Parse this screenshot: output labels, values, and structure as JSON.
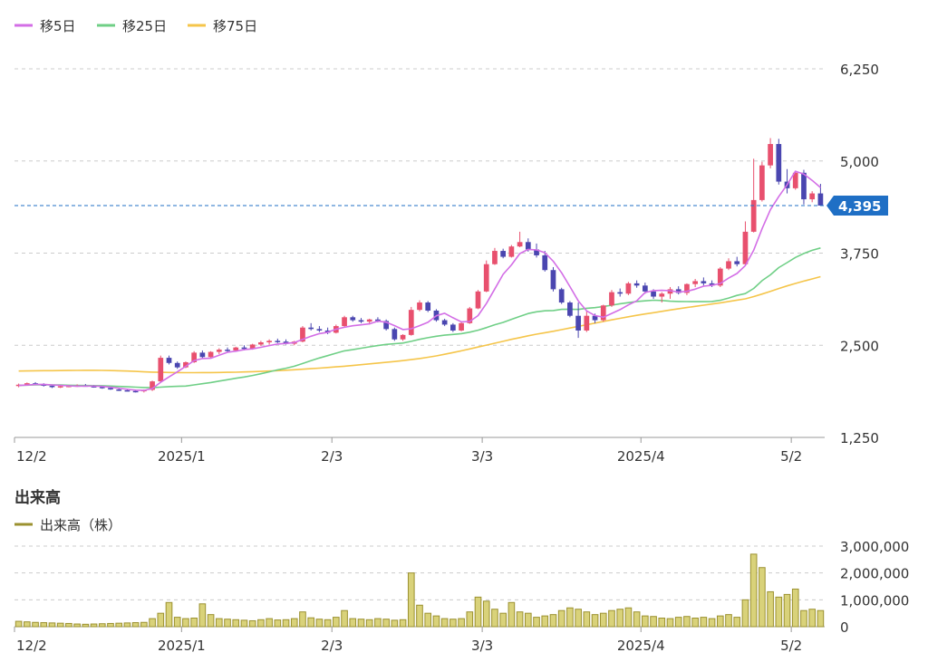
{
  "colors": {
    "up": "#e8506e",
    "down": "#4a46b0",
    "ma5": "#d36ee6",
    "ma25": "#6fcf86",
    "ma75": "#f5c54a",
    "volume_fill": "#d9d27a",
    "volume_stroke": "#9b9130",
    "last_price": "#1f6fc5",
    "grid": "#cccccc"
  },
  "chart_data": [
    {
      "type": "candlestick",
      "legend": [
        {
          "key": "ma5",
          "label": "移5日"
        },
        {
          "key": "ma25",
          "label": "移25日"
        },
        {
          "key": "ma75",
          "label": "移75日"
        }
      ],
      "legend_placement": "top-left",
      "ylim": [
        1250,
        6250
      ],
      "yticks": [
        1250,
        2500,
        3750,
        5000,
        6250
      ],
      "ytick_labels": [
        "1,250",
        "2,500",
        "3,750",
        "5,000",
        "6,250"
      ],
      "xtick_labels": [
        {
          "label": "12/2",
          "index": 0
        },
        {
          "label": "2025/1",
          "index": 20
        },
        {
          "label": "2/3",
          "index": 38
        },
        {
          "label": "3/3",
          "index": 56
        },
        {
          "label": "2025/4",
          "index": 75
        },
        {
          "label": "5/2",
          "index": 93
        }
      ],
      "last_price": 4395,
      "last_price_label": "4,395",
      "grid": true,
      "candles": [
        [
          1955,
          1980,
          1930,
          1965
        ],
        [
          1965,
          1995,
          1950,
          1985
        ],
        [
          1985,
          2000,
          1960,
          1970
        ],
        [
          1970,
          1985,
          1940,
          1950
        ],
        [
          1950,
          1965,
          1920,
          1935
        ],
        [
          1935,
          1955,
          1920,
          1945
        ],
        [
          1945,
          1960,
          1930,
          1950
        ],
        [
          1950,
          1970,
          1935,
          1955
        ],
        [
          1955,
          1975,
          1940,
          1945
        ],
        [
          1945,
          1960,
          1925,
          1935
        ],
        [
          1935,
          1950,
          1910,
          1920
        ],
        [
          1920,
          1935,
          1895,
          1900
        ],
        [
          1900,
          1920,
          1880,
          1890
        ],
        [
          1890,
          1910,
          1875,
          1880
        ],
        [
          1880,
          1900,
          1860,
          1875
        ],
        [
          1875,
          1900,
          1860,
          1895
        ],
        [
          1895,
          2020,
          1880,
          2010
        ],
        [
          2010,
          2360,
          2000,
          2330
        ],
        [
          2330,
          2360,
          2240,
          2260
        ],
        [
          2260,
          2280,
          2180,
          2200
        ],
        [
          2200,
          2280,
          2190,
          2270
        ],
        [
          2270,
          2420,
          2260,
          2400
        ],
        [
          2400,
          2430,
          2320,
          2340
        ],
        [
          2340,
          2420,
          2330,
          2410
        ],
        [
          2410,
          2460,
          2380,
          2440
        ],
        [
          2440,
          2470,
          2410,
          2430
        ],
        [
          2430,
          2480,
          2420,
          2470
        ],
        [
          2470,
          2500,
          2430,
          2450
        ],
        [
          2450,
          2520,
          2440,
          2510
        ],
        [
          2510,
          2560,
          2490,
          2540
        ],
        [
          2540,
          2580,
          2510,
          2560
        ],
        [
          2560,
          2590,
          2530,
          2550
        ],
        [
          2550,
          2580,
          2510,
          2520
        ],
        [
          2520,
          2560,
          2500,
          2550
        ],
        [
          2550,
          2760,
          2540,
          2740
        ],
        [
          2740,
          2800,
          2700,
          2720
        ],
        [
          2720,
          2760,
          2680,
          2700
        ],
        [
          2700,
          2740,
          2650,
          2670
        ],
        [
          2670,
          2780,
          2660,
          2760
        ],
        [
          2760,
          2900,
          2750,
          2880
        ],
        [
          2880,
          2900,
          2820,
          2840
        ],
        [
          2840,
          2870,
          2800,
          2820
        ],
        [
          2820,
          2860,
          2780,
          2850
        ],
        [
          2850,
          2880,
          2810,
          2830
        ],
        [
          2830,
          2850,
          2700,
          2720
        ],
        [
          2720,
          2740,
          2560,
          2580
        ],
        [
          2580,
          2650,
          2560,
          2640
        ],
        [
          2640,
          3020,
          2630,
          2980
        ],
        [
          2980,
          3110,
          2960,
          3080
        ],
        [
          3080,
          3100,
          2950,
          2970
        ],
        [
          2970,
          2990,
          2820,
          2840
        ],
        [
          2840,
          2860,
          2760,
          2780
        ],
        [
          2780,
          2800,
          2680,
          2700
        ],
        [
          2700,
          2820,
          2690,
          2800
        ],
        [
          2800,
          3020,
          2790,
          3000
        ],
        [
          3000,
          3250,
          2990,
          3230
        ],
        [
          3230,
          3650,
          3220,
          3600
        ],
        [
          3600,
          3820,
          3590,
          3780
        ],
        [
          3780,
          3810,
          3680,
          3700
        ],
        [
          3700,
          3860,
          3690,
          3840
        ],
        [
          3840,
          4040,
          3830,
          3900
        ],
        [
          3900,
          3950,
          3770,
          3800
        ],
        [
          3800,
          3880,
          3690,
          3720
        ],
        [
          3720,
          3780,
          3500,
          3520
        ],
        [
          3520,
          3560,
          3230,
          3260
        ],
        [
          3260,
          3280,
          3060,
          3080
        ],
        [
          3080,
          3100,
          2880,
          2900
        ],
        [
          2900,
          3080,
          2600,
          2700
        ],
        [
          2700,
          2960,
          2680,
          2900
        ],
        [
          2900,
          2930,
          2800,
          2840
        ],
        [
          2840,
          3050,
          2820,
          3040
        ],
        [
          3040,
          3250,
          3020,
          3220
        ],
        [
          3220,
          3270,
          3160,
          3200
        ],
        [
          3200,
          3360,
          3180,
          3340
        ],
        [
          3340,
          3380,
          3280,
          3310
        ],
        [
          3310,
          3350,
          3200,
          3230
        ],
        [
          3230,
          3260,
          3130,
          3160
        ],
        [
          3160,
          3220,
          3080,
          3200
        ],
        [
          3200,
          3290,
          3130,
          3260
        ],
        [
          3260,
          3300,
          3190,
          3210
        ],
        [
          3210,
          3340,
          3180,
          3330
        ],
        [
          3330,
          3400,
          3290,
          3370
        ],
        [
          3370,
          3420,
          3310,
          3340
        ],
        [
          3340,
          3380,
          3290,
          3310
        ],
        [
          3310,
          3560,
          3290,
          3540
        ],
        [
          3540,
          3680,
          3520,
          3640
        ],
        [
          3640,
          3700,
          3570,
          3600
        ],
        [
          3600,
          4180,
          3590,
          4040
        ],
        [
          4040,
          5030,
          4030,
          4470
        ],
        [
          4470,
          4990,
          4450,
          4940
        ],
        [
          4940,
          5310,
          4900,
          5230
        ],
        [
          5230,
          5300,
          4680,
          4720
        ],
        [
          4720,
          4890,
          4560,
          4630
        ],
        [
          4630,
          4860,
          4610,
          4840
        ],
        [
          4840,
          4880,
          4410,
          4480
        ],
        [
          4480,
          4590,
          4440,
          4560
        ],
        [
          4560,
          4690,
          4390,
          4395
        ]
      ],
      "ma5": [
        1955,
        1960,
        1968,
        1970,
        1961,
        1957,
        1949,
        1945,
        1947,
        1946,
        1942,
        1930,
        1917,
        1903,
        1891,
        1888,
        1914,
        1998,
        2071,
        2139,
        2214,
        2292,
        2320,
        2324,
        2364,
        2405,
        2420,
        2440,
        2452,
        2472,
        2496,
        2516,
        2525,
        2536,
        2580,
        2622,
        2658,
        2676,
        2718,
        2744,
        2765,
        2777,
        2790,
        2828,
        2813,
        2766,
        2713,
        2724,
        2766,
        2811,
        2900,
        2934,
        2873,
        2818,
        2823,
        2902,
        3066,
        3262,
        3462,
        3590,
        3744,
        3800,
        3794,
        3756,
        3640,
        3483,
        3295,
        3103,
        2966,
        2903,
        2880,
        2932,
        2983,
        3047,
        3103,
        3216,
        3241,
        3245,
        3240,
        3222,
        3232,
        3261,
        3302,
        3313,
        3338,
        3411,
        3473,
        3580,
        3790,
        4081,
        4338,
        4516,
        4676,
        4860,
        4822,
        4737,
        4640
      ],
      "ma25": [
        1955,
        1959,
        1963,
        1965,
        1963,
        1961,
        1958,
        1955,
        1954,
        1953,
        1951,
        1947,
        1942,
        1937,
        1932,
        1927,
        1925,
        1932,
        1939,
        1943,
        1946,
        1962,
        1978,
        1994,
        2014,
        2033,
        2052,
        2070,
        2090,
        2114,
        2140,
        2166,
        2189,
        2216,
        2252,
        2291,
        2327,
        2359,
        2393,
        2424,
        2441,
        2460,
        2479,
        2496,
        2512,
        2522,
        2530,
        2554,
        2580,
        2603,
        2622,
        2637,
        2647,
        2658,
        2678,
        2704,
        2739,
        2778,
        2810,
        2852,
        2891,
        2930,
        2954,
        2967,
        2971,
        2987,
        2989,
        2986,
        3002,
        3011,
        3025,
        3044,
        3063,
        3078,
        3094,
        3102,
        3111,
        3107,
        3098,
        3094,
        3093,
        3091,
        3092,
        3094,
        3110,
        3141,
        3176,
        3201,
        3271,
        3377,
        3455,
        3553,
        3621,
        3691,
        3745,
        3788,
        3820
      ],
      "ma75": [
        2150,
        2152,
        2154,
        2155,
        2156,
        2157,
        2158,
        2159,
        2160,
        2160,
        2159,
        2157,
        2154,
        2150,
        2145,
        2140,
        2136,
        2133,
        2131,
        2129,
        2128,
        2128,
        2129,
        2130,
        2131,
        2133,
        2135,
        2138,
        2142,
        2146,
        2151,
        2156,
        2162,
        2168,
        2175,
        2182,
        2190,
        2198,
        2207,
        2216,
        2226,
        2236,
        2247,
        2258,
        2269,
        2280,
        2292,
        2305,
        2320,
        2337,
        2356,
        2378,
        2401,
        2425,
        2450,
        2476,
        2502,
        2528,
        2554,
        2580,
        2604,
        2628,
        2650,
        2670,
        2690,
        2712,
        2734,
        2756,
        2778,
        2800,
        2822,
        2844,
        2866,
        2886,
        2906,
        2924,
        2942,
        2960,
        2978,
        2996,
        3012,
        3028,
        3044,
        3060,
        3076,
        3094,
        3112,
        3130,
        3160,
        3195,
        3232,
        3270,
        3305,
        3338,
        3370,
        3400,
        3430
      ]
    },
    {
      "type": "bar",
      "title": "出来高",
      "series_name": "出来高（株）",
      "ylim": [
        0,
        3000000
      ],
      "yticks": [
        0,
        1000000,
        2000000,
        3000000
      ],
      "ytick_labels": [
        "0",
        "1,000,000",
        "2,000,000",
        "3,000,000"
      ],
      "xtick_labels": [
        {
          "label": "12/2",
          "index": 0
        },
        {
          "label": "2025/1",
          "index": 20
        },
        {
          "label": "2/3",
          "index": 38
        },
        {
          "label": "3/3",
          "index": 56
        },
        {
          "label": "2025/4",
          "index": 75
        },
        {
          "label": "5/2",
          "index": 93
        }
      ],
      "grid": true,
      "values": [
        200000,
        180000,
        160000,
        150000,
        140000,
        130000,
        120000,
        100000,
        90000,
        100000,
        110000,
        120000,
        130000,
        140000,
        150000,
        160000,
        300000,
        500000,
        900000,
        350000,
        300000,
        320000,
        850000,
        450000,
        300000,
        280000,
        260000,
        240000,
        220000,
        260000,
        300000,
        250000,
        260000,
        300000,
        550000,
        330000,
        280000,
        260000,
        350000,
        600000,
        300000,
        280000,
        260000,
        300000,
        280000,
        240000,
        260000,
        2000000,
        800000,
        500000,
        400000,
        300000,
        280000,
        300000,
        550000,
        1100000,
        950000,
        650000,
        500000,
        900000,
        550000,
        500000,
        350000,
        400000,
        450000,
        600000,
        700000,
        650000,
        550000,
        450000,
        500000,
        600000,
        650000,
        700000,
        550000,
        400000,
        380000,
        320000,
        300000,
        350000,
        380000,
        320000,
        350000,
        300000,
        400000,
        450000,
        350000,
        1000000,
        2700000,
        2200000,
        1300000,
        1100000,
        1200000,
        1400000,
        600000,
        650000,
        600000
      ]
    }
  ]
}
